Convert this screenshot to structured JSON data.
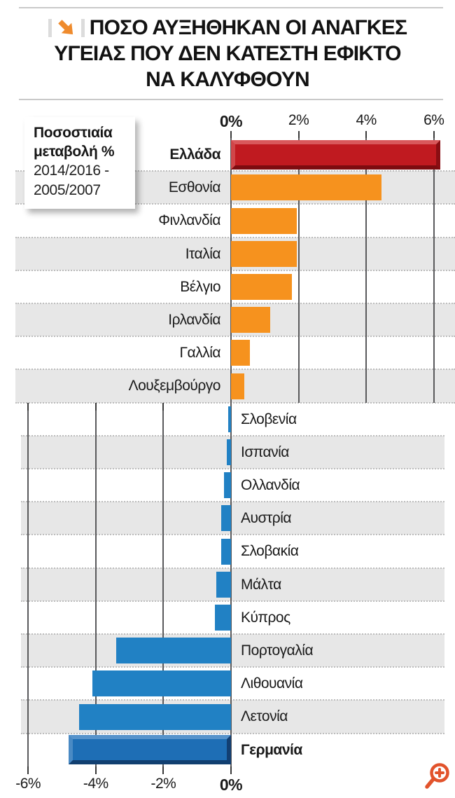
{
  "header": {
    "title_lines": [
      "ΠΟΣΟ ΑΥΞΗΘΗΚΑΝ ΟΙ ΑΝΑΓΚΕΣ",
      "ΥΓΕΙΑΣ ΠΟΥ ΔΕΝ ΚΑΤΕΣΤΗ ΕΦΙΚΤΟ",
      "ΝΑ ΚΑΛΥΦΘΟΥΝ"
    ],
    "arrow_icon_color": "#ef8b2d"
  },
  "legend_box": {
    "line1": "Ποσοστιαία",
    "line2": "μεταβολή %",
    "line3": "2014/2016 -",
    "line4": "2005/2007"
  },
  "chart_data": {
    "type": "bar",
    "orientation": "horizontal",
    "title": "ΠΟΣΟ ΑΥΞΗΘΗΚΑΝ ΟΙ ΑΝΑΓΚΕΣ ΥΓΕΙΑΣ ΠΟΥ ΔΕΝ ΚΑΤΕΣΤΗ ΕΦΙΚΤΟ ΝΑ ΚΑΛΥΦΘΟΥΝ",
    "subtitle": "Ποσοστιαία μεταβολή % 2014/2016 - 2005/2007",
    "unit": "%",
    "categories": [
      "Ελλάδα",
      "Εσθονία",
      "Φινλανδία",
      "Ιταλία",
      "Βέλγιο",
      "Ιρλανδία",
      "Γαλλία",
      "Λουξεμβούργο",
      "Σλοβενία",
      "Ισπανία",
      "Ολλανδία",
      "Αυστρία",
      "Σλοβακία",
      "Μάλτα",
      "Κύπρος",
      "Πορτογαλία",
      "Λιθουανία",
      "Λετονία",
      "Γερμανία"
    ],
    "values": [
      6.2,
      4.45,
      1.95,
      1.95,
      1.8,
      1.15,
      0.55,
      0.4,
      -0.08,
      -0.12,
      -0.2,
      -0.3,
      -0.3,
      -0.43,
      -0.47,
      -3.4,
      -4.1,
      -4.5,
      -4.8
    ],
    "bold_categories": [
      "Ελλάδα",
      "Γερμανία"
    ],
    "highlighted_bars": {
      "Ελλάδα": "red-bevel",
      "Γερμανία": "blue-bevel"
    },
    "top_axis_labels": [
      "0%",
      "2%",
      "4%",
      "6%"
    ],
    "top_axis_values": [
      0,
      2,
      4,
      6
    ],
    "bottom_axis_labels": [
      "-6%",
      "-4%",
      "-2%",
      "0%"
    ],
    "bottom_axis_values": [
      -6,
      -4,
      -2,
      0
    ],
    "xlim": [
      -6.3,
      6.4
    ],
    "grid": true,
    "legend_position": "top-left",
    "colors": {
      "positive_bar": "#f6921e",
      "negative_bar": "#2181c4",
      "greece_bar": "#c01a20",
      "germany_bar": "#1e6eb5",
      "row_band": "#e7e7e7",
      "gridline": "#5a5a5c",
      "separator_dots": "#bcbcbc",
      "title_text": "#121212"
    }
  },
  "zoom_icon": {
    "semantic": "zoom-in-magnifier",
    "color": "#e2532c"
  }
}
